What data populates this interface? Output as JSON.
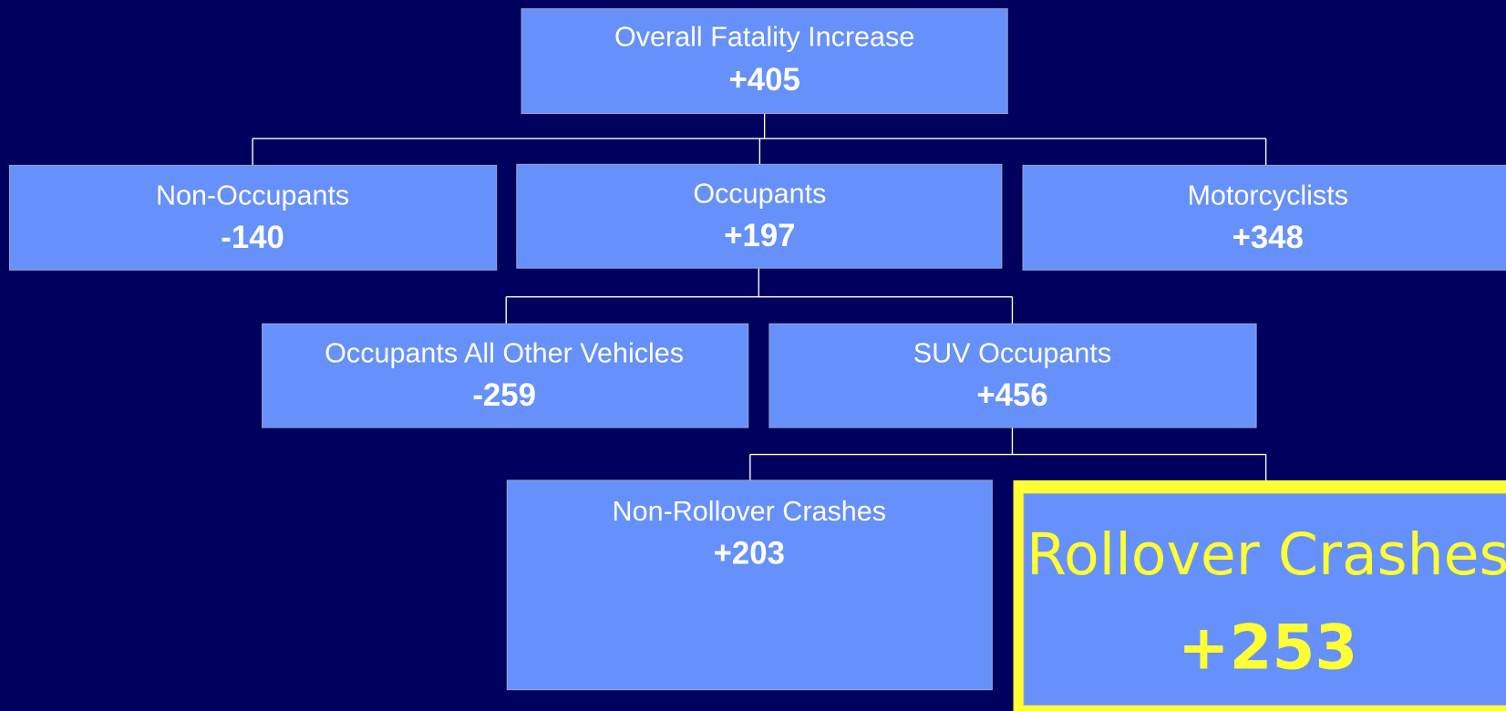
{
  "nodes": [
    {
      "label": "Overall Fatality Increase",
      "value": "+405"
    },
    {
      "label": "Non-Occupants",
      "value": "-140"
    },
    {
      "label": "Occupants",
      "value": "+197"
    },
    {
      "label": "Motorcyclists",
      "value": "+348"
    },
    {
      "label": "Occupants All Other Vehicles",
      "value": "-259"
    },
    {
      "label": "SUV Occupants",
      "value": "+456"
    },
    {
      "label": "Non-Rollover Crashes",
      "value": "+203"
    },
    {
      "label": "Rollover Crashes",
      "value": "+253"
    }
  ]
}
